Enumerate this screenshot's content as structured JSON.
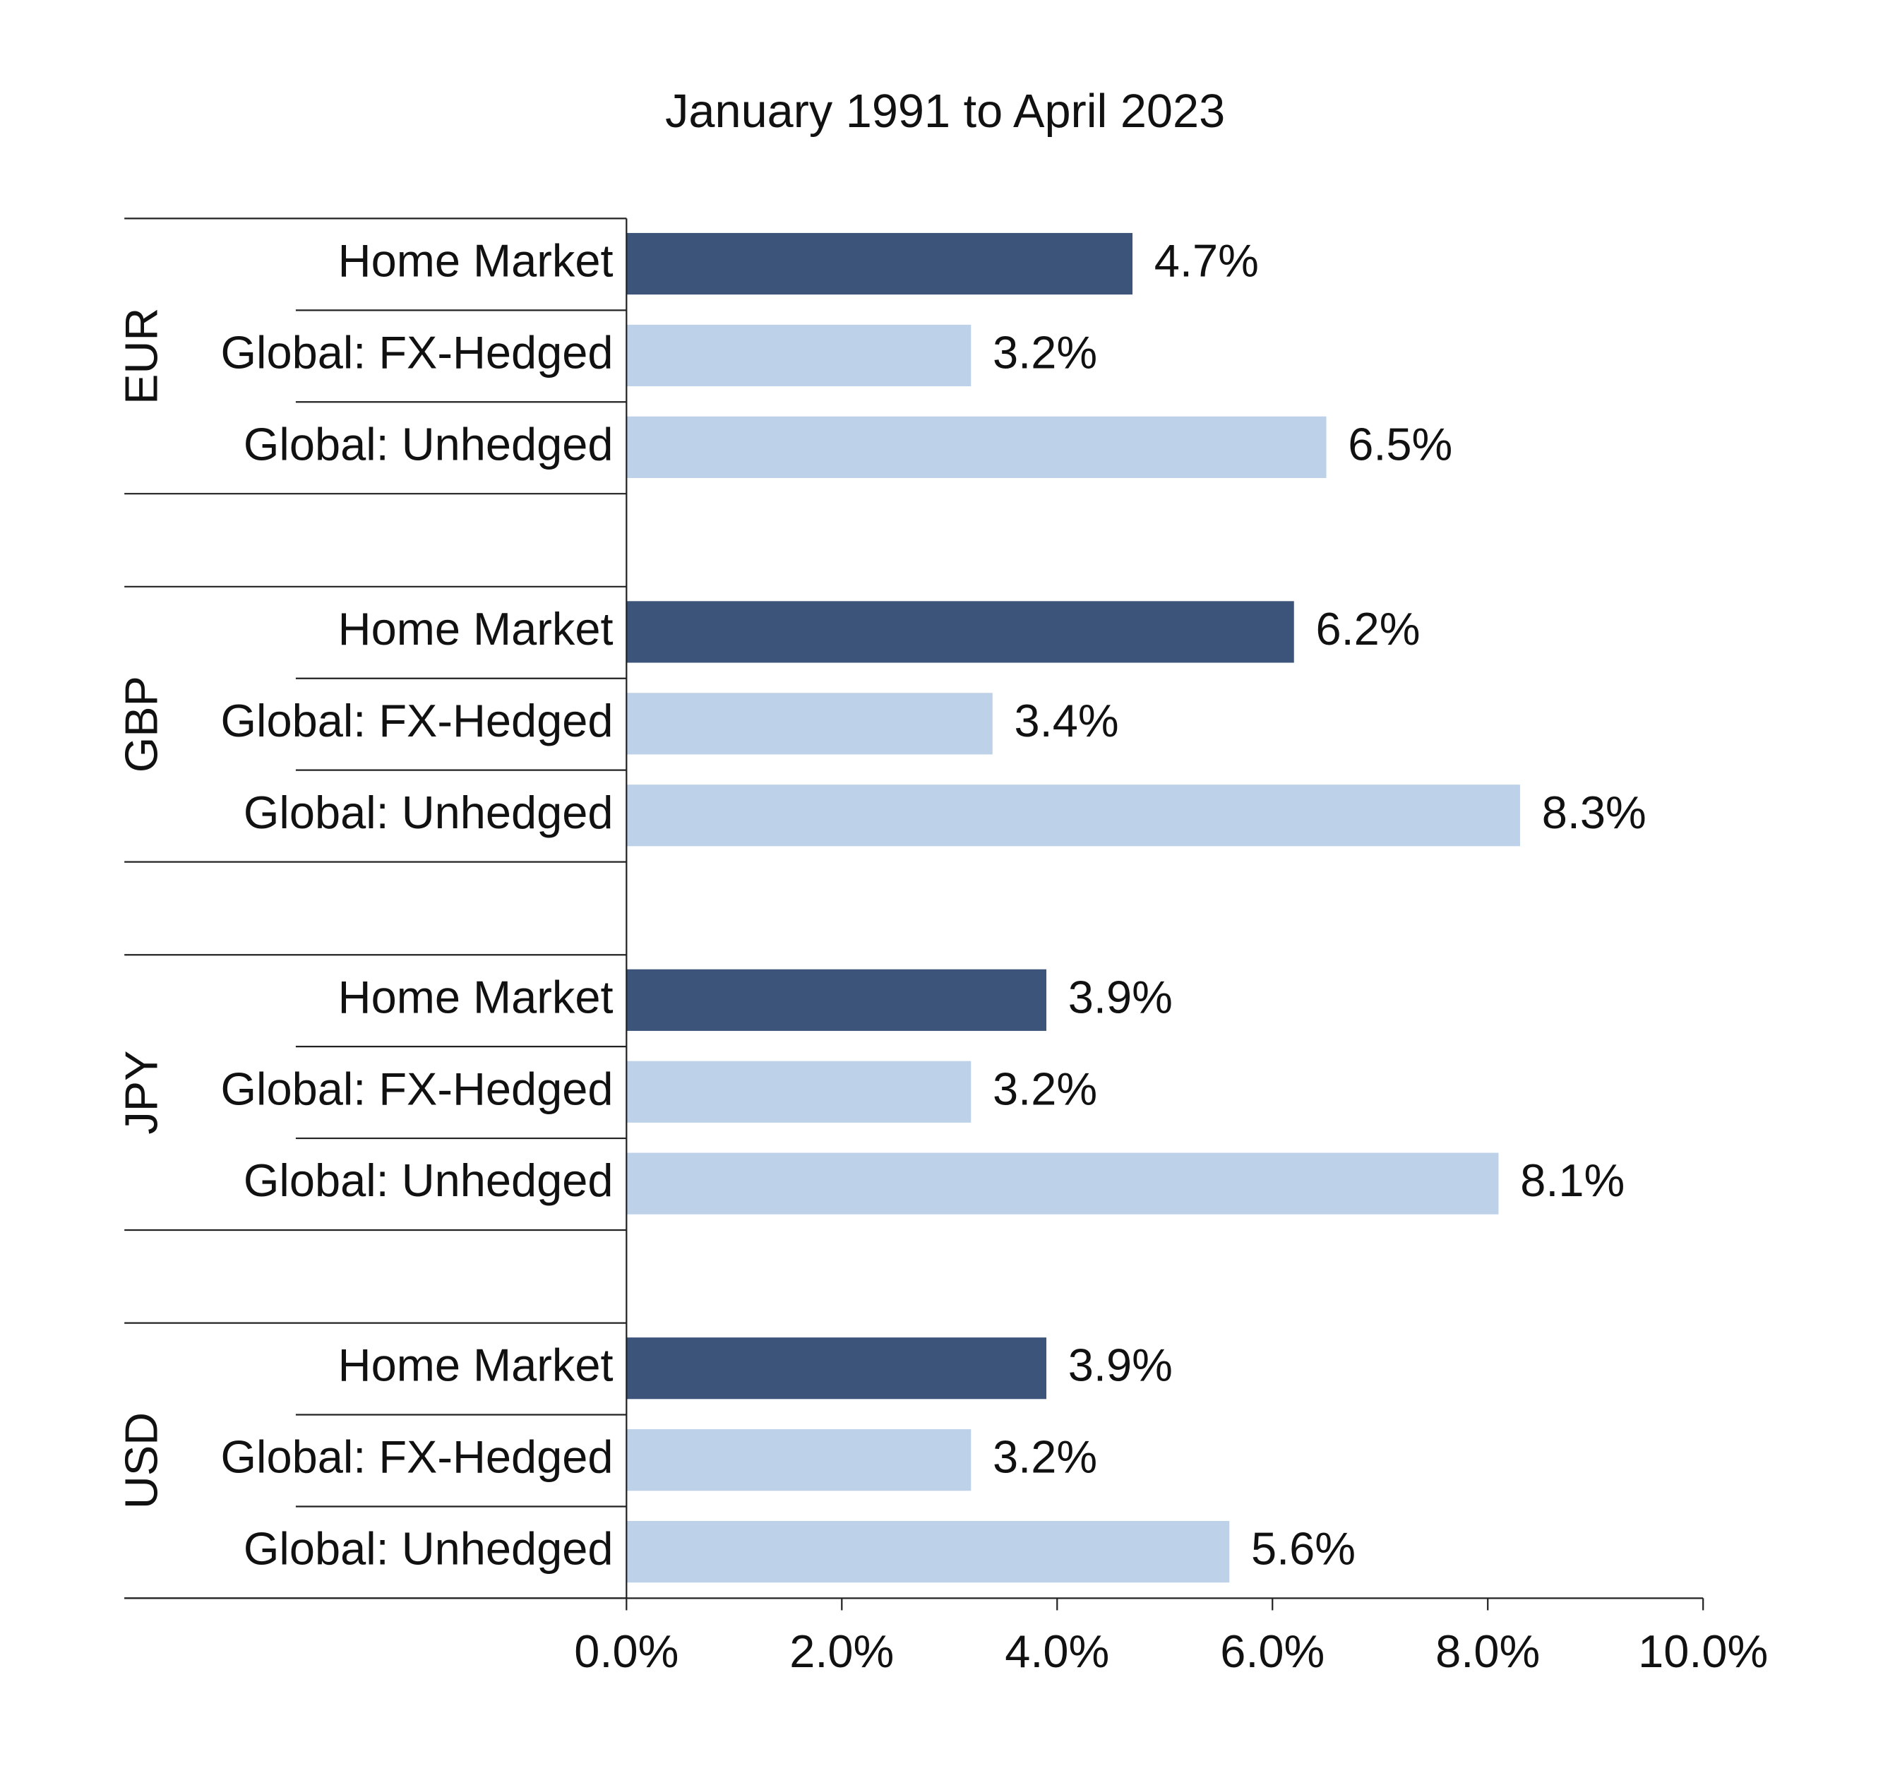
{
  "chart_data": {
    "type": "grouped-horizontal-bar",
    "title": "January 1991 to April 2023",
    "colors": [
      "#3c5479",
      "#bdd1e8",
      "#bdd1e8"
    ],
    "groups": [
      {
        "name": "EUR",
        "categories": [
          "Home Market",
          "Global: FX-Hedged",
          "Global: Unhedged"
        ],
        "values": [
          4.7,
          3.2,
          6.5
        ],
        "value_labels": [
          "4.7%",
          "3.2%",
          "6.5%"
        ]
      },
      {
        "name": "GBP",
        "categories": [
          "Home Market",
          "Global: FX-Hedged",
          "Global: Unhedged"
        ],
        "values": [
          6.2,
          3.4,
          8.3
        ],
        "value_labels": [
          "6.2%",
          "3.4%",
          "8.3%"
        ]
      },
      {
        "name": "JPY",
        "categories": [
          "Home Market",
          "Global: FX-Hedged",
          "Global: Unhedged"
        ],
        "values": [
          3.9,
          3.2,
          8.1
        ],
        "value_labels": [
          "3.9%",
          "3.2%",
          "8.1%"
        ]
      },
      {
        "name": "USD",
        "categories": [
          "Home Market",
          "Global: FX-Hedged",
          "Global: Unhedged"
        ],
        "values": [
          3.9,
          3.2,
          5.6
        ],
        "value_labels": [
          "3.9%",
          "3.2%",
          "5.6%"
        ]
      }
    ],
    "xlim": [
      0,
      10
    ],
    "xticks": [
      {
        "value": 0,
        "label": "0.0%"
      },
      {
        "value": 2,
        "label": "2.0%"
      },
      {
        "value": 4,
        "label": "4.0%"
      },
      {
        "value": 6,
        "label": "6.0%"
      },
      {
        "value": 8,
        "label": "8.0%"
      },
      {
        "value": 10,
        "label": "10.0%"
      }
    ]
  }
}
